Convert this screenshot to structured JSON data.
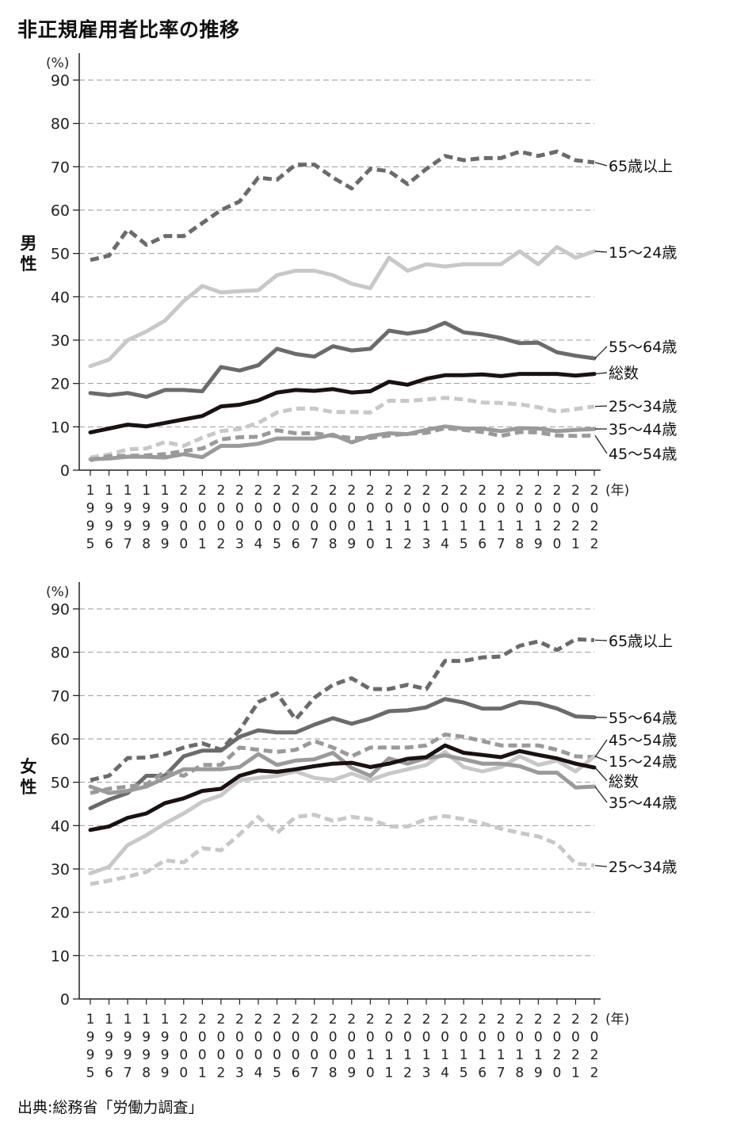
{
  "title": "非正規雇用者比率の推移",
  "source": "出典:総務省「労働力調査」",
  "styles": {
    "65歳以上": {
      "color": "#6b6b6b",
      "dash": true
    },
    "15～24歳": {
      "color": "#c8c8c8",
      "dash": false
    },
    "55～64歳": {
      "color": "#6b6b6b",
      "dash": false
    },
    "総数": {
      "color": "#1a1212",
      "dash": false
    },
    "25～34歳": {
      "color": "#c8c8c8",
      "dash": true
    },
    "35～44歳": {
      "color": "#9a9a9a",
      "dash": false
    },
    "45～54歳": {
      "color": "#9a9a9a",
      "dash": true
    }
  },
  "chart_data": [
    {
      "type": "line",
      "panel_label": "男性",
      "y_unit": "(%)",
      "x_unit": "(年)",
      "ylim": [
        0,
        90
      ],
      "yticks": [
        0,
        10,
        20,
        30,
        40,
        50,
        60,
        70,
        80,
        90
      ],
      "grid": true,
      "x": [
        1995,
        1996,
        1997,
        1998,
        1999,
        2000,
        2001,
        2002,
        2003,
        2004,
        2005,
        2006,
        2007,
        2008,
        2009,
        2010,
        2011,
        2012,
        2013,
        2014,
        2015,
        2016,
        2017,
        2018,
        2019,
        2020,
        2021,
        2022
      ],
      "series": [
        {
          "name": "65歳以上",
          "values": [
            48.5,
            49.5,
            55.5,
            52,
            54,
            54,
            57,
            60,
            62,
            67.5,
            67,
            70.5,
            70.5,
            67.5,
            65,
            69.5,
            69,
            66,
            69.5,
            72.5,
            71.5,
            72,
            72,
            73.5,
            72.5,
            73.5,
            71.5,
            71
          ]
        },
        {
          "name": "15～24歳",
          "values": [
            24,
            25.5,
            30,
            32,
            34.5,
            39,
            42.5,
            41,
            41.3,
            41.5,
            45,
            46,
            46,
            45,
            43,
            42,
            49,
            46,
            47.5,
            47,
            47.5,
            47.5,
            47.5,
            50.5,
            47.5,
            51.5,
            49,
            50.5
          ]
        },
        {
          "name": "55～64歳",
          "values": [
            17.8,
            17.3,
            17.8,
            16.9,
            18.5,
            18.5,
            18.2,
            23.8,
            23,
            24.2,
            28,
            26.8,
            26.2,
            28.6,
            27.6,
            28,
            32.2,
            31.5,
            32.2,
            34,
            31.8,
            31.3,
            30.5,
            29.3,
            29.4,
            27.2,
            26.4,
            25.8
          ]
        },
        {
          "name": "総数",
          "values": [
            8.7,
            9.6,
            10.5,
            10.1,
            10.9,
            11.7,
            12.5,
            14.7,
            15.1,
            16.1,
            17.9,
            18.5,
            18.3,
            18.7,
            17.9,
            18.2,
            20.4,
            19.7,
            21.1,
            21.9,
            21.9,
            22.1,
            21.7,
            22.2,
            22.2,
            22.2,
            21.8,
            22.2
          ]
        },
        {
          "name": "25～34歳",
          "values": [
            2.9,
            3.6,
            4.8,
            5,
            6.5,
            5.6,
            7.5,
            9,
            9.5,
            10.9,
            13.3,
            14.2,
            14.2,
            13.4,
            13.4,
            13.3,
            16,
            16,
            16.3,
            16.7,
            16.3,
            15.6,
            15.5,
            15.2,
            14.5,
            13.5,
            14.1,
            14.7
          ]
        },
        {
          "name": "35～44歳",
          "values": [
            2.5,
            2.7,
            3.1,
            3.1,
            2.9,
            3.7,
            3,
            5.6,
            5.6,
            6.1,
            7.3,
            7.3,
            7.3,
            8.2,
            6.4,
            7.9,
            8.5,
            8.3,
            9.3,
            10.1,
            9.6,
            9.6,
            9,
            9.7,
            9.6,
            9,
            9.3,
            9.5
          ]
        },
        {
          "name": "45～54歳",
          "values": [
            2.3,
            3.2,
            3.3,
            3.4,
            3.7,
            4.4,
            5,
            7.1,
            7.6,
            7.7,
            9.2,
            8.5,
            8.5,
            7.9,
            7.4,
            7.4,
            8,
            8.4,
            8.6,
            9.7,
            9.3,
            8.8,
            7.9,
            8.8,
            8.7,
            8,
            7.9,
            8
          ]
        }
      ]
    },
    {
      "type": "line",
      "panel_label": "女性",
      "y_unit": "(%)",
      "x_unit": "(年)",
      "ylim": [
        0,
        90
      ],
      "yticks": [
        0,
        10,
        20,
        30,
        40,
        50,
        60,
        70,
        80,
        90
      ],
      "grid": true,
      "x": [
        1995,
        1996,
        1997,
        1998,
        1999,
        2000,
        2001,
        2002,
        2003,
        2004,
        2005,
        2006,
        2007,
        2008,
        2009,
        2010,
        2011,
        2012,
        2013,
        2014,
        2015,
        2016,
        2017,
        2018,
        2019,
        2020,
        2021,
        2022
      ],
      "series": [
        {
          "name": "65歳以上",
          "values": [
            50.5,
            51.5,
            55.6,
            55.7,
            56.5,
            58,
            59,
            57.5,
            62,
            68.5,
            70.5,
            64.5,
            69.5,
            72.5,
            74,
            71.5,
            71.5,
            72.5,
            71.5,
            78,
            78,
            78.8,
            79,
            81.5,
            82.5,
            80.5,
            83,
            82.8
          ]
        },
        {
          "name": "55～64歳",
          "values": [
            44,
            46,
            47.5,
            51.5,
            51.5,
            56,
            57.3,
            57.3,
            60.5,
            62,
            61.5,
            61.5,
            63.3,
            64.8,
            63.5,
            64.7,
            66.4,
            66.6,
            67.3,
            69.2,
            68.4,
            67,
            67,
            68.5,
            68.2,
            67,
            65.2,
            65
          ]
        },
        {
          "name": "45～54歳",
          "values": [
            47.5,
            48.5,
            49,
            49.5,
            52.5,
            51.5,
            54,
            54,
            58,
            57.5,
            57,
            57.5,
            59.5,
            58,
            56,
            58,
            58,
            58,
            58.5,
            61,
            60.5,
            59.5,
            58.5,
            58.5,
            58.5,
            57.5,
            56,
            55.8
          ]
        },
        {
          "name": "15～24歳",
          "values": [
            29,
            30.5,
            35.5,
            37.8,
            40.5,
            42.8,
            45.5,
            47,
            50.5,
            51,
            51.5,
            52.5,
            51,
            50.5,
            52,
            50.5,
            52,
            53,
            54,
            57,
            53.5,
            52.5,
            53.5,
            56,
            54,
            55,
            52.5,
            56
          ]
        },
        {
          "name": "総数",
          "values": [
            39,
            39.8,
            41.8,
            42.8,
            45.2,
            46.3,
            48,
            48.5,
            51.5,
            52.7,
            52.4,
            53,
            53.7,
            54.3,
            54.5,
            53.5,
            54.3,
            55.4,
            55.8,
            58.5,
            56.8,
            56.3,
            55.8,
            57.2,
            56.3,
            55.5,
            54.3,
            53.4
          ]
        },
        {
          "name": "35～44歳",
          "values": [
            49,
            47.5,
            48,
            49,
            51,
            53,
            53,
            53,
            53.5,
            56.5,
            54,
            55,
            55.3,
            56.8,
            53.3,
            51.5,
            55.5,
            54.3,
            55.6,
            56.2,
            55.3,
            54.3,
            54.3,
            53.7,
            52.2,
            52.2,
            48.8,
            49
          ]
        },
        {
          "name": "25～34歳",
          "values": [
            26.5,
            27.3,
            28.2,
            29.3,
            32,
            31.5,
            34.8,
            34.3,
            38,
            42,
            38.3,
            42,
            42.5,
            41.1,
            42,
            41.5,
            39.8,
            39.8,
            41.5,
            42.2,
            41.5,
            40.5,
            39.3,
            38.3,
            37.5,
            35.8,
            31.2,
            30.8
          ]
        }
      ]
    }
  ],
  "panels": [
    {
      "label": "男性",
      "end_labels": [
        {
          "series": "65歳以上",
          "text": "65歳以上"
        },
        {
          "series": "15～24歳",
          "text": "15～24歳"
        },
        {
          "series": "55～64歳",
          "text": "55～64歳"
        },
        {
          "series": "総数",
          "text": "総数"
        },
        {
          "series": "25～34歳",
          "text": "25～34歳"
        },
        {
          "series": "35～44歳",
          "text": "35～44歳"
        },
        {
          "series": "45～54歳",
          "text": "45～54歳"
        }
      ]
    },
    {
      "label": "女性",
      "end_labels": [
        {
          "series": "65歳以上",
          "text": "65歳以上"
        },
        {
          "series": "55～64歳",
          "text": "55～64歳"
        },
        {
          "series": "45～54歳",
          "text": "45～54歳"
        },
        {
          "series": "15～24歳",
          "text": "15～24歳"
        },
        {
          "series": "総数",
          "text": "総数"
        },
        {
          "series": "35～44歳",
          "text": "35～44歳"
        },
        {
          "series": "25～34歳",
          "text": "25～34歳"
        }
      ]
    }
  ]
}
